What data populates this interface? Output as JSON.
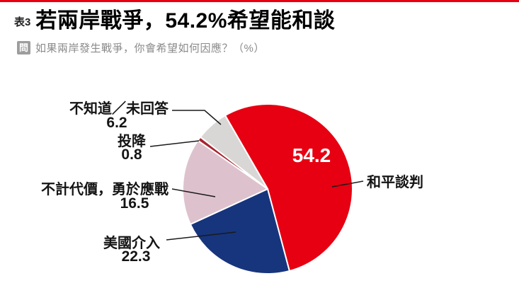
{
  "header": {
    "table_tag": "表3",
    "title": "若兩岸戰爭，54.2%希望能和談",
    "question_badge": "問",
    "question": "如果兩岸發生戰爭，你會希望如何因應？（%）"
  },
  "chart_data": {
    "type": "pie",
    "unit": "%",
    "direction": "clockwise",
    "start_angle_deg": 330,
    "slices": [
      {
        "label": "和平談判",
        "value": 54.2,
        "color": "#e60012"
      },
      {
        "label": "美國介入",
        "value": 22.3,
        "color": "#17357d"
      },
      {
        "label": "不計代價，勇於應戰",
        "value": 16.5,
        "color": "#ddc2cd"
      },
      {
        "label": "投降",
        "value": 0.8,
        "color": "#a8232e"
      },
      {
        "label": "不知道／未回答",
        "value": 6.2,
        "color": "#d9d7d5"
      }
    ],
    "inside_label": "54.2",
    "accent_color": "#e60012"
  }
}
